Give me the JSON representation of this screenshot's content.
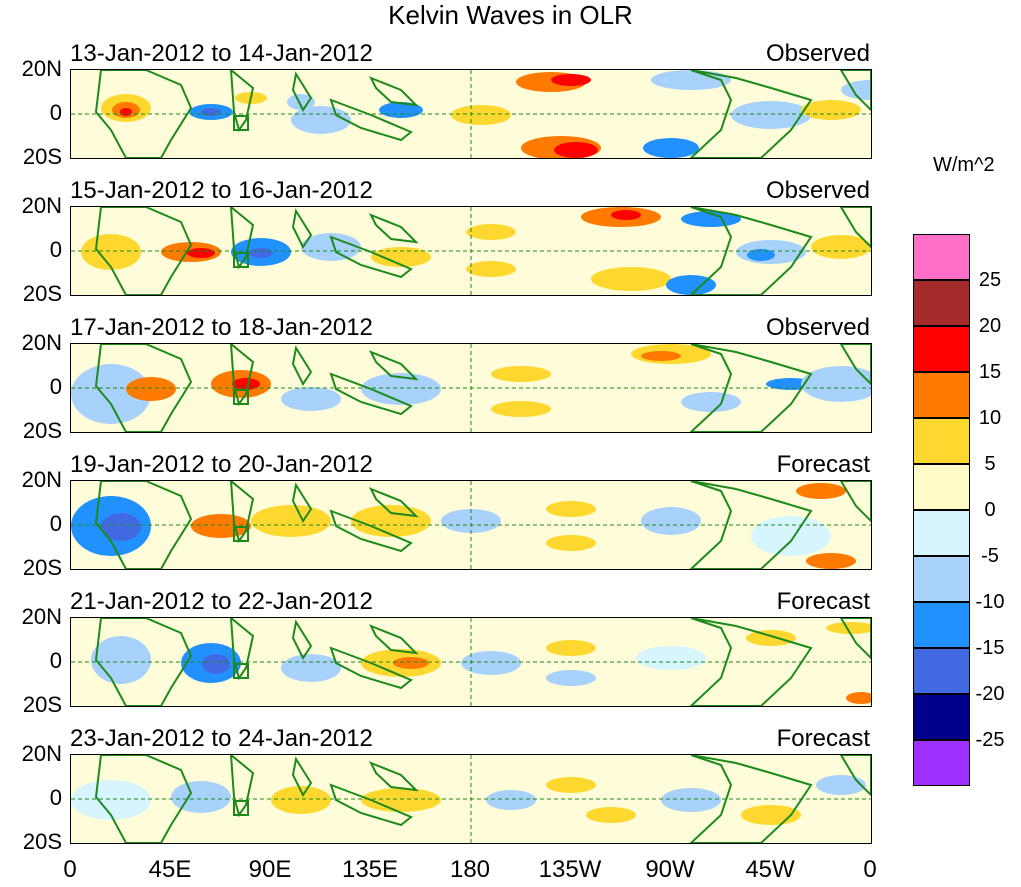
{
  "title": "Kelvin Waves in OLR",
  "lat_labels": [
    "20N",
    "0",
    "20S"
  ],
  "lon_labels": [
    "0",
    "45E",
    "90E",
    "135E",
    "180",
    "135W",
    "90W",
    "45W",
    "0"
  ],
  "panels": [
    {
      "date": "13-Jan-2012 to 14-Jan-2012",
      "status": "Observed"
    },
    {
      "date": "15-Jan-2012 to 16-Jan-2012",
      "status": "Observed"
    },
    {
      "date": "17-Jan-2012 to 18-Jan-2012",
      "status": "Observed"
    },
    {
      "date": "19-Jan-2012 to 20-Jan-2012",
      "status": "Forecast"
    },
    {
      "date": "21-Jan-2012 to 22-Jan-2012",
      "status": "Forecast"
    },
    {
      "date": "23-Jan-2012 to 24-Jan-2012",
      "status": "Forecast"
    }
  ],
  "colorbar": {
    "unit": "W/m^2",
    "labels": [
      "25",
      "20",
      "15",
      "10",
      "5",
      "0",
      "-5",
      "-10",
      "-15",
      "-20",
      "-25"
    ],
    "colors": [
      "#ff6ec7",
      "#a52a2a",
      "#ff0000",
      "#ff7a00",
      "#ffd82f",
      "#fffcc8",
      "#d6f5ff",
      "#a8d2fb",
      "#2191ff",
      "#4169e1",
      "#00008b",
      "#9d30ff"
    ]
  }
}
